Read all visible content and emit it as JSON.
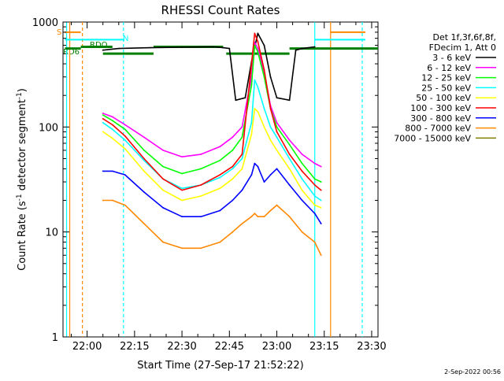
{
  "chart_data": {
    "type": "line",
    "title": "RHESSI Count Rates",
    "xlabel": "Start Time (27-Sep-17 21:52:22)",
    "ylabel": "Count Rate (s⁻¹ detector segment⁻¹)",
    "ylabel_main": "Count Rate (s",
    "ylabel_sup1": "-1",
    "ylabel_mid": " detector segment",
    "ylabel_sup2": "-1",
    "ylabel_end": ")",
    "y_scale": "log",
    "ylim": [
      1,
      1000
    ],
    "xlim": [
      "21:52:22",
      "23:32:00"
    ],
    "x_ticks": [
      "22:00",
      "22:15",
      "22:30",
      "22:45",
      "23:00",
      "23:15",
      "23:30"
    ],
    "y_ticks": [
      "1",
      "10",
      "100",
      "1000"
    ],
    "legend_header": [
      "Det 1f,3f,6f,8f,",
      "FDecim 1, Att 0"
    ],
    "legend_position": "right",
    "footer_date": "2-Sep-2022 00:56",
    "annotations": {
      "S": "S",
      "N": "N",
      "RDO": "RDO",
      "RD6": "RD6"
    },
    "series": [
      {
        "name": "3 - 6 keV",
        "color": "#000000",
        "x": [
          "22:05",
          "22:10",
          "22:20",
          "22:30",
          "22:40",
          "22:43",
          "22:45",
          "22:47",
          "22:50",
          "22:52",
          "22:54",
          "22:56",
          "22:58",
          "23:00",
          "23:04",
          "23:06",
          "23:08",
          "23:10",
          "23:12"
        ],
        "y": [
          540,
          560,
          570,
          575,
          580,
          570,
          560,
          180,
          190,
          420,
          780,
          600,
          300,
          190,
          180,
          540,
          560,
          570,
          580
        ]
      },
      {
        "name": "6 - 12 keV",
        "color": "#ff00ff",
        "x": [
          "22:05",
          "22:08",
          "22:12",
          "22:18",
          "22:24",
          "22:30",
          "22:36",
          "22:42",
          "22:46",
          "22:49",
          "22:52",
          "22:53",
          "22:54",
          "22:56",
          "22:58",
          "23:00",
          "23:04",
          "23:08",
          "23:12",
          "23:14"
        ],
        "y": [
          135,
          125,
          105,
          80,
          60,
          52,
          55,
          65,
          80,
          100,
          300,
          640,
          560,
          330,
          160,
          110,
          75,
          55,
          45,
          42
        ]
      },
      {
        "name": "12 - 25 keV",
        "color": "#00ff00",
        "x": [
          "22:05",
          "22:08",
          "22:12",
          "22:18",
          "22:24",
          "22:30",
          "22:36",
          "22:42",
          "22:46",
          "22:49",
          "22:52",
          "22:53",
          "22:54",
          "22:56",
          "22:58",
          "23:00",
          "23:04",
          "23:08",
          "23:12",
          "23:14"
        ],
        "y": [
          130,
          115,
          95,
          60,
          42,
          36,
          40,
          48,
          60,
          80,
          250,
          600,
          520,
          300,
          150,
          100,
          68,
          45,
          32,
          30
        ]
      },
      {
        "name": "25 - 50 keV",
        "color": "#00ffff",
        "x": [
          "22:05",
          "22:08",
          "22:12",
          "22:18",
          "22:24",
          "22:30",
          "22:36",
          "22:42",
          "22:46",
          "22:49",
          "22:52",
          "22:53",
          "22:54",
          "22:56",
          "22:58",
          "23:00",
          "23:04",
          "23:08",
          "23:12",
          "23:14"
        ],
        "y": [
          110,
          95,
          75,
          48,
          32,
          26,
          28,
          33,
          40,
          50,
          110,
          280,
          240,
          150,
          100,
          80,
          50,
          32,
          22,
          20
        ]
      },
      {
        "name": "50 - 100 keV",
        "color": "#ffff00",
        "x": [
          "22:05",
          "22:08",
          "22:12",
          "22:18",
          "22:24",
          "22:30",
          "22:36",
          "22:42",
          "22:46",
          "22:49",
          "22:52",
          "22:53",
          "22:54",
          "22:56",
          "22:58",
          "23:00",
          "23:04",
          "23:08",
          "23:12",
          "23:14"
        ],
        "y": [
          90,
          78,
          62,
          38,
          25,
          20,
          22,
          26,
          32,
          40,
          85,
          150,
          140,
          100,
          75,
          60,
          40,
          25,
          18,
          17
        ]
      },
      {
        "name": "100 - 300 keV",
        "color": "#ff0000",
        "x": [
          "22:05",
          "22:08",
          "22:12",
          "22:18",
          "22:24",
          "22:30",
          "22:36",
          "22:42",
          "22:46",
          "22:49",
          "22:52",
          "22:53",
          "22:54",
          "22:56",
          "22:58",
          "23:00",
          "23:04",
          "23:08",
          "23:12",
          "23:14"
        ],
        "y": [
          120,
          105,
          82,
          50,
          32,
          25,
          28,
          35,
          42,
          55,
          400,
          780,
          650,
          350,
          150,
          90,
          55,
          38,
          28,
          25
        ]
      },
      {
        "name": "300 - 800 keV",
        "color": "#0000ff",
        "x": [
          "22:05",
          "22:08",
          "22:12",
          "22:18",
          "22:24",
          "22:30",
          "22:36",
          "22:42",
          "22:46",
          "22:49",
          "22:52",
          "22:53",
          "22:54",
          "22:56",
          "22:58",
          "23:00",
          "23:04",
          "23:08",
          "23:12",
          "23:14"
        ],
        "y": [
          38,
          38,
          35,
          24,
          17,
          14,
          14,
          16,
          20,
          25,
          35,
          45,
          42,
          30,
          35,
          40,
          28,
          20,
          15,
          12
        ]
      },
      {
        "name": "800 - 7000 keV",
        "color": "#ff8800",
        "x": [
          "22:05",
          "22:08",
          "22:12",
          "22:18",
          "22:24",
          "22:30",
          "22:36",
          "22:42",
          "22:46",
          "22:49",
          "22:52",
          "22:53",
          "22:54",
          "22:56",
          "22:58",
          "23:00",
          "23:04",
          "23:08",
          "23:12",
          "23:14"
        ],
        "y": [
          20,
          20,
          18,
          12,
          8,
          7,
          7,
          8,
          10,
          12,
          14,
          15,
          14,
          14,
          16,
          18,
          14,
          10,
          8,
          6
        ]
      },
      {
        "name": "7000 - 15000 keV",
        "color": "#808000",
        "x": [],
        "y": []
      }
    ]
  }
}
